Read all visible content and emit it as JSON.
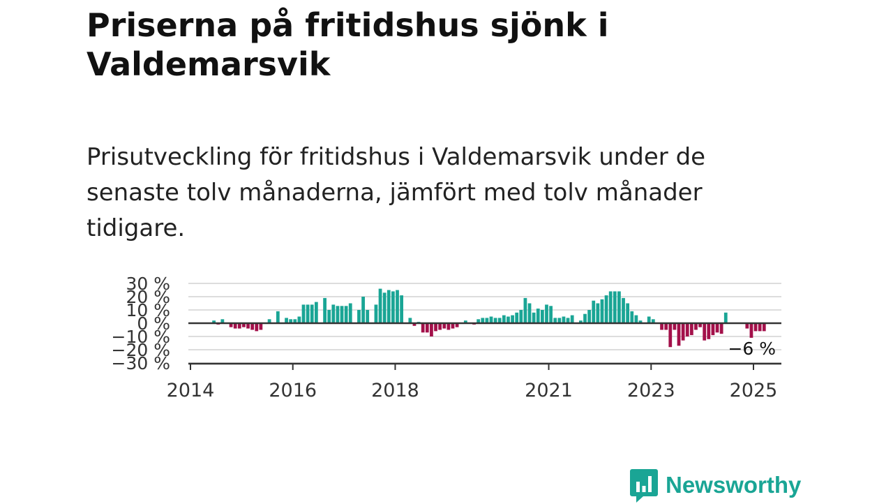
{
  "title": "Priserna på fritidshus sjönk i Valdemarsvik",
  "subtitle": "Prisutveckling för fritidshus i Valdemarsvik under de senaste tolv månaderna, jämfört med tolv månader tidigare.",
  "logo": {
    "text": "Newsworthy",
    "icon": "bar-chart-speech-bubble-icon"
  },
  "colors": {
    "positive": "#1aa595",
    "negative": "#a3104a",
    "grid": "#dddddd",
    "axis": "#333333"
  },
  "chart_data": {
    "type": "bar",
    "x_start": "2014-01",
    "x_end": "2025-06",
    "ylim": [
      -30,
      30
    ],
    "yticks": [
      30,
      20,
      10,
      0,
      -10,
      -20,
      -30
    ],
    "ytick_labels": [
      "30 %",
      "20 %",
      "10 %",
      "0 %",
      "−10 %",
      "−20 %",
      "−30 %"
    ],
    "xticks": [
      "2014",
      "2016",
      "2018",
      "2021",
      "2023",
      "2025"
    ],
    "grid": true,
    "last_value_label": "−6 %",
    "points": [
      [
        "2014-06",
        2
      ],
      [
        "2014-07",
        -1
      ],
      [
        "2014-08",
        3
      ],
      [
        "2014-09",
        0
      ],
      [
        "2014-10",
        -3
      ],
      [
        "2014-11",
        -4
      ],
      [
        "2014-12",
        -4
      ],
      [
        "2015-01",
        -3
      ],
      [
        "2015-02",
        -4
      ],
      [
        "2015-03",
        -5
      ],
      [
        "2015-04",
        -6
      ],
      [
        "2015-05",
        -5
      ],
      [
        "2015-06",
        0
      ],
      [
        "2015-07",
        3
      ],
      [
        "2015-08",
        0
      ],
      [
        "2015-09",
        9
      ],
      [
        "2015-10",
        0
      ],
      [
        "2015-11",
        4
      ],
      [
        "2015-12",
        3
      ],
      [
        "2016-01",
        3
      ],
      [
        "2016-02",
        5
      ],
      [
        "2016-03",
        14
      ],
      [
        "2016-04",
        14
      ],
      [
        "2016-05",
        14
      ],
      [
        "2016-06",
        16
      ],
      [
        "2016-07",
        0
      ],
      [
        "2016-08",
        19
      ],
      [
        "2016-09",
        10
      ],
      [
        "2016-10",
        14
      ],
      [
        "2016-11",
        13
      ],
      [
        "2016-12",
        13
      ],
      [
        "2017-01",
        13
      ],
      [
        "2017-02",
        15
      ],
      [
        "2017-03",
        0
      ],
      [
        "2017-04",
        10
      ],
      [
        "2017-05",
        20
      ],
      [
        "2017-06",
        10
      ],
      [
        "2017-07",
        0
      ],
      [
        "2017-08",
        14
      ],
      [
        "2017-09",
        26
      ],
      [
        "2017-10",
        23
      ],
      [
        "2017-11",
        25
      ],
      [
        "2017-12",
        24
      ],
      [
        "2018-01",
        25
      ],
      [
        "2018-02",
        21
      ],
      [
        "2018-03",
        0
      ],
      [
        "2018-04",
        4
      ],
      [
        "2018-05",
        -2
      ],
      [
        "2018-06",
        1
      ],
      [
        "2018-07",
        -7
      ],
      [
        "2018-08",
        -7
      ],
      [
        "2018-09",
        -10
      ],
      [
        "2018-10",
        -6
      ],
      [
        "2018-11",
        -5
      ],
      [
        "2018-12",
        -4
      ],
      [
        "2019-01",
        -5
      ],
      [
        "2019-02",
        -4
      ],
      [
        "2019-03",
        -3
      ],
      [
        "2019-04",
        0
      ],
      [
        "2019-05",
        2
      ],
      [
        "2019-06",
        0
      ],
      [
        "2019-07",
        -1
      ],
      [
        "2019-08",
        3
      ],
      [
        "2019-09",
        4
      ],
      [
        "2019-10",
        4
      ],
      [
        "2019-11",
        5
      ],
      [
        "2019-12",
        4
      ],
      [
        "2020-01",
        4
      ],
      [
        "2020-02",
        6
      ],
      [
        "2020-03",
        5
      ],
      [
        "2020-04",
        6
      ],
      [
        "2020-05",
        8
      ],
      [
        "2020-06",
        10
      ],
      [
        "2020-07",
        19
      ],
      [
        "2020-08",
        15
      ],
      [
        "2020-09",
        8
      ],
      [
        "2020-10",
        11
      ],
      [
        "2020-11",
        10
      ],
      [
        "2020-12",
        14
      ],
      [
        "2021-01",
        13
      ],
      [
        "2021-02",
        4
      ],
      [
        "2021-03",
        4
      ],
      [
        "2021-04",
        5
      ],
      [
        "2021-05",
        4
      ],
      [
        "2021-06",
        6
      ],
      [
        "2021-07",
        0
      ],
      [
        "2021-08",
        2
      ],
      [
        "2021-09",
        7
      ],
      [
        "2021-10",
        10
      ],
      [
        "2021-11",
        17
      ],
      [
        "2021-12",
        15
      ],
      [
        "2022-01",
        18
      ],
      [
        "2022-02",
        21
      ],
      [
        "2022-03",
        24
      ],
      [
        "2022-04",
        24
      ],
      [
        "2022-05",
        24
      ],
      [
        "2022-06",
        19
      ],
      [
        "2022-07",
        15
      ],
      [
        "2022-08",
        9
      ],
      [
        "2022-09",
        6
      ],
      [
        "2022-10",
        2
      ],
      [
        "2022-11",
        0
      ],
      [
        "2022-12",
        5
      ],
      [
        "2023-01",
        3
      ],
      [
        "2023-02",
        0
      ],
      [
        "2023-03",
        -5
      ],
      [
        "2023-04",
        -5
      ],
      [
        "2023-05",
        -18
      ],
      [
        "2023-06",
        -5
      ],
      [
        "2023-07",
        -17
      ],
      [
        "2023-08",
        -13
      ],
      [
        "2023-09",
        -10
      ],
      [
        "2023-10",
        -9
      ],
      [
        "2023-11",
        -5
      ],
      [
        "2023-12",
        -3
      ],
      [
        "2024-01",
        -13
      ],
      [
        "2024-02",
        -12
      ],
      [
        "2024-03",
        -9
      ],
      [
        "2024-04",
        -7
      ],
      [
        "2024-05",
        -8
      ],
      [
        "2024-06",
        8
      ],
      [
        "2024-07",
        0
      ],
      [
        "2024-08",
        0
      ],
      [
        "2024-09",
        0
      ],
      [
        "2024-10",
        0
      ],
      [
        "2024-11",
        -4
      ],
      [
        "2024-12",
        -11
      ],
      [
        "2025-01",
        -6
      ],
      [
        "2025-02",
        -6
      ],
      [
        "2025-03",
        -6
      ]
    ]
  }
}
